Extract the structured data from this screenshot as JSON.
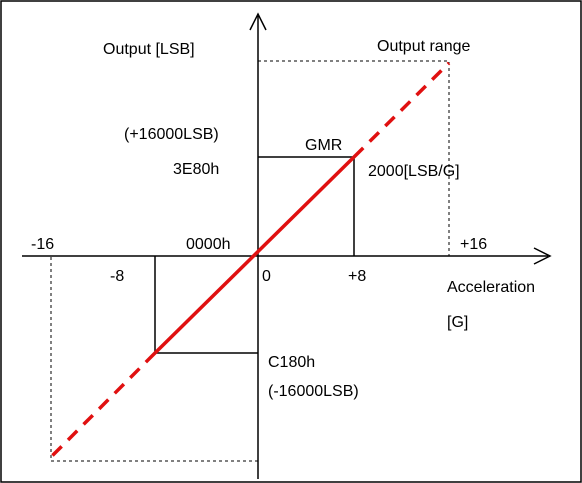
{
  "diagram": {
    "y_axis_label": "Output [LSB]",
    "x_axis_label_line1": "Acceleration",
    "x_axis_label_line2": "[G]",
    "output_range_label": "Output range",
    "gmr_label": "GMR",
    "sensitivity_label": "2000[LSB/G]",
    "pos_lsb_label": "(+16000LSB)",
    "pos_hex_label": "3E80h",
    "zero_hex_label": "0000h",
    "neg_hex_label": "C180h",
    "neg_lsb_label": "(-16000LSB)",
    "tick_neg16": "-16",
    "tick_neg8": "-8",
    "tick_zero": "0",
    "tick_pos8": "+8",
    "tick_pos16": "+16",
    "line_color": "#e01010",
    "axis_color": "#000000"
  }
}
